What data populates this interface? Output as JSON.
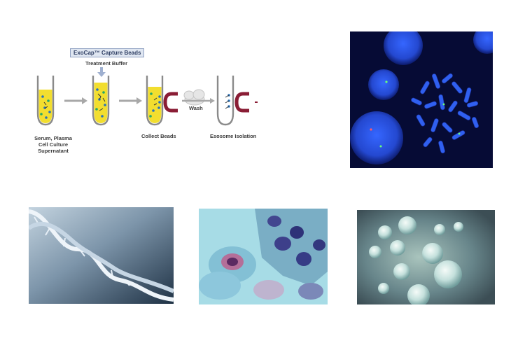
{
  "workflow": {
    "beads_title": "ExoCap™ Capture Beads",
    "buffer_label": "Treatment Buffer",
    "wash_label": "Wash",
    "step1_lines": [
      "Serum, Plasma",
      "Cell Culture",
      "Supernatant"
    ],
    "step3_label": "Collect Beads",
    "step4_label": "Esosome Isolation",
    "colors": {
      "liquid": "#f2de2f",
      "arrow": "#a8a8a8",
      "magnet": "#8a1d35",
      "dot_blue": "#2a72b8",
      "dot_green": "#25a86a"
    }
  },
  "images": {
    "fish": {
      "icon": "fluorescent-chromosome-image",
      "colors": {
        "bg": "#060b35",
        "stain": "#2b55e8"
      }
    },
    "dna": {
      "icon": "dna-helix-image",
      "colors": {
        "bg": "#7f98ad",
        "strand": "#dce8f2"
      }
    },
    "cells": {
      "icon": "stained-cells-image",
      "colors": {
        "bg": "#a7dce6",
        "nucleus": "#3a3a8a",
        "pink": "#c05a8a"
      }
    },
    "spheres": {
      "icon": "exosome-spheres-image",
      "colors": {
        "bg": "#5d7b7c",
        "sphere": "#d8ecea"
      }
    }
  }
}
